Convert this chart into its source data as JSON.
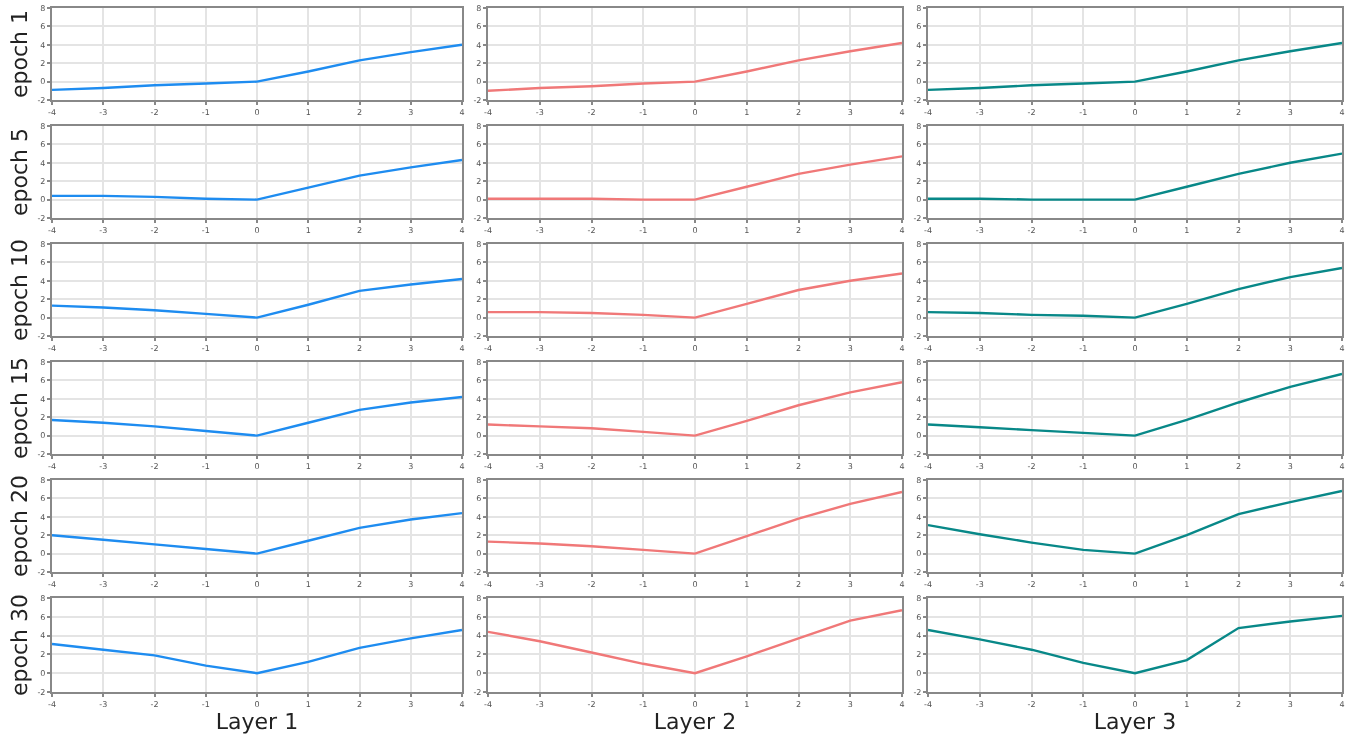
{
  "chart_data": [
    {
      "type": "line",
      "ylabel": "epoch 1",
      "x": [
        -4,
        -3,
        -2,
        -1,
        0,
        1,
        2,
        3,
        4
      ],
      "series": [
        {
          "color": "#1e8cf0",
          "values": [
            -0.9,
            -0.7,
            -0.4,
            -0.2,
            0,
            1.1,
            2.3,
            3.2,
            4.0
          ]
        }
      ],
      "xlim": [
        -4,
        4
      ],
      "ylim": [
        -2,
        8
      ],
      "xticks": [
        -4,
        -3,
        -2,
        -1,
        0,
        1,
        2,
        3,
        4
      ],
      "yticks": [
        -2,
        0,
        2,
        4,
        6,
        8
      ],
      "grid": true
    },
    {
      "type": "line",
      "x": [
        -4,
        -3,
        -2,
        -1,
        0,
        1,
        2,
        3,
        4
      ],
      "series": [
        {
          "color": "#f07878",
          "values": [
            -1.0,
            -0.7,
            -0.5,
            -0.2,
            0,
            1.1,
            2.3,
            3.3,
            4.2
          ]
        }
      ],
      "xlim": [
        -4,
        4
      ],
      "ylim": [
        -2,
        8
      ],
      "xticks": [
        -4,
        -3,
        -2,
        -1,
        0,
        1,
        2,
        3,
        4
      ],
      "yticks": [
        -2,
        0,
        2,
        4,
        6,
        8
      ],
      "grid": true
    },
    {
      "type": "line",
      "x": [
        -4,
        -3,
        -2,
        -1,
        0,
        1,
        2,
        3,
        4
      ],
      "series": [
        {
          "color": "#088888",
          "values": [
            -0.9,
            -0.7,
            -0.4,
            -0.2,
            0,
            1.1,
            2.3,
            3.3,
            4.2
          ]
        }
      ],
      "xlim": [
        -4,
        4
      ],
      "ylim": [
        -2,
        8
      ],
      "xticks": [
        -4,
        -3,
        -2,
        -1,
        0,
        1,
        2,
        3,
        4
      ],
      "yticks": [
        -2,
        0,
        2,
        4,
        6,
        8
      ],
      "grid": true
    },
    {
      "type": "line",
      "ylabel": "epoch 5",
      "x": [
        -4,
        -3,
        -2,
        -1,
        0,
        1,
        2,
        3,
        4
      ],
      "series": [
        {
          "color": "#1e8cf0",
          "values": [
            0.4,
            0.4,
            0.3,
            0.1,
            0,
            1.3,
            2.6,
            3.5,
            4.3
          ]
        }
      ],
      "xlim": [
        -4,
        4
      ],
      "ylim": [
        -2,
        8
      ],
      "xticks": [
        -4,
        -3,
        -2,
        -1,
        0,
        1,
        2,
        3,
        4
      ],
      "yticks": [
        -2,
        0,
        2,
        4,
        6,
        8
      ],
      "grid": true
    },
    {
      "type": "line",
      "x": [
        -4,
        -3,
        -2,
        -1,
        0,
        1,
        2,
        3,
        4
      ],
      "series": [
        {
          "color": "#f07878",
          "values": [
            0.1,
            0.1,
            0.1,
            0,
            0,
            1.4,
            2.8,
            3.8,
            4.7
          ]
        }
      ],
      "xlim": [
        -4,
        4
      ],
      "ylim": [
        -2,
        8
      ],
      "xticks": [
        -4,
        -3,
        -2,
        -1,
        0,
        1,
        2,
        3,
        4
      ],
      "yticks": [
        -2,
        0,
        2,
        4,
        6,
        8
      ],
      "grid": true
    },
    {
      "type": "line",
      "x": [
        -4,
        -3,
        -2,
        -1,
        0,
        1,
        2,
        3,
        4
      ],
      "series": [
        {
          "color": "#088888",
          "values": [
            0.1,
            0.1,
            0,
            0,
            0,
            1.4,
            2.8,
            4.0,
            5.0
          ]
        }
      ],
      "xlim": [
        -4,
        4
      ],
      "ylim": [
        -2,
        8
      ],
      "xticks": [
        -4,
        -3,
        -2,
        -1,
        0,
        1,
        2,
        3,
        4
      ],
      "yticks": [
        -2,
        0,
        2,
        4,
        6,
        8
      ],
      "grid": true
    },
    {
      "type": "line",
      "ylabel": "epoch 10",
      "x": [
        -4,
        -3,
        -2,
        -1,
        0,
        1,
        2,
        3,
        4
      ],
      "series": [
        {
          "color": "#1e8cf0",
          "values": [
            1.3,
            1.1,
            0.8,
            0.4,
            0,
            1.4,
            2.9,
            3.6,
            4.2
          ]
        }
      ],
      "xlim": [
        -4,
        4
      ],
      "ylim": [
        -2,
        8
      ],
      "xticks": [
        -4,
        -3,
        -2,
        -1,
        0,
        1,
        2,
        3,
        4
      ],
      "yticks": [
        -2,
        0,
        2,
        4,
        6,
        8
      ],
      "grid": true
    },
    {
      "type": "line",
      "x": [
        -4,
        -3,
        -2,
        -1,
        0,
        1,
        2,
        3,
        4
      ],
      "series": [
        {
          "color": "#f07878",
          "values": [
            0.6,
            0.6,
            0.5,
            0.3,
            0,
            1.5,
            3.0,
            4.0,
            4.8
          ]
        }
      ],
      "xlim": [
        -4,
        4
      ],
      "ylim": [
        -2,
        8
      ],
      "xticks": [
        -4,
        -3,
        -2,
        -1,
        0,
        1,
        2,
        3,
        4
      ],
      "yticks": [
        -2,
        0,
        2,
        4,
        6,
        8
      ],
      "grid": true
    },
    {
      "type": "line",
      "x": [
        -4,
        -3,
        -2,
        -1,
        0,
        1,
        2,
        3,
        4
      ],
      "series": [
        {
          "color": "#088888",
          "values": [
            0.6,
            0.5,
            0.3,
            0.2,
            0,
            1.5,
            3.1,
            4.4,
            5.4
          ]
        }
      ],
      "xlim": [
        -4,
        4
      ],
      "ylim": [
        -2,
        8
      ],
      "xticks": [
        -4,
        -3,
        -2,
        -1,
        0,
        1,
        2,
        3,
        4
      ],
      "yticks": [
        -2,
        0,
        2,
        4,
        6,
        8
      ],
      "grid": true
    },
    {
      "type": "line",
      "ylabel": "epoch 15",
      "x": [
        -4,
        -3,
        -2,
        -1,
        0,
        1,
        2,
        3,
        4
      ],
      "series": [
        {
          "color": "#1e8cf0",
          "values": [
            1.7,
            1.4,
            1.0,
            0.5,
            0,
            1.4,
            2.8,
            3.6,
            4.2
          ]
        }
      ],
      "xlim": [
        -4,
        4
      ],
      "ylim": [
        -2,
        8
      ],
      "xticks": [
        -4,
        -3,
        -2,
        -1,
        0,
        1,
        2,
        3,
        4
      ],
      "yticks": [
        -2,
        0,
        2,
        4,
        6,
        8
      ],
      "grid": true
    },
    {
      "type": "line",
      "x": [
        -4,
        -3,
        -2,
        -1,
        0,
        1,
        2,
        3,
        4
      ],
      "series": [
        {
          "color": "#f07878",
          "values": [
            1.2,
            1.0,
            0.8,
            0.4,
            0,
            1.6,
            3.3,
            4.7,
            5.8
          ]
        }
      ],
      "xlim": [
        -4,
        4
      ],
      "ylim": [
        -2,
        8
      ],
      "xticks": [
        -4,
        -3,
        -2,
        -1,
        0,
        1,
        2,
        3,
        4
      ],
      "yticks": [
        -2,
        0,
        2,
        4,
        6,
        8
      ],
      "grid": true
    },
    {
      "type": "line",
      "x": [
        -4,
        -3,
        -2,
        -1,
        0,
        1,
        2,
        3,
        4
      ],
      "series": [
        {
          "color": "#088888",
          "values": [
            1.2,
            0.9,
            0.6,
            0.3,
            0,
            1.7,
            3.6,
            5.3,
            6.7
          ]
        }
      ],
      "xlim": [
        -4,
        4
      ],
      "ylim": [
        -2,
        8
      ],
      "xticks": [
        -4,
        -3,
        -2,
        -1,
        0,
        1,
        2,
        3,
        4
      ],
      "yticks": [
        -2,
        0,
        2,
        4,
        6,
        8
      ],
      "grid": true
    },
    {
      "type": "line",
      "ylabel": "epoch 20",
      "x": [
        -4,
        -3,
        -2,
        -1,
        0,
        1,
        2,
        3,
        4
      ],
      "series": [
        {
          "color": "#1e8cf0",
          "values": [
            2.0,
            1.5,
            1.0,
            0.5,
            0,
            1.4,
            2.8,
            3.7,
            4.4
          ]
        }
      ],
      "xlim": [
        -4,
        4
      ],
      "ylim": [
        -2,
        8
      ],
      "xticks": [
        -4,
        -3,
        -2,
        -1,
        0,
        1,
        2,
        3,
        4
      ],
      "yticks": [
        -2,
        0,
        2,
        4,
        6,
        8
      ],
      "grid": true
    },
    {
      "type": "line",
      "x": [
        -4,
        -3,
        -2,
        -1,
        0,
        1,
        2,
        3,
        4
      ],
      "series": [
        {
          "color": "#f07878",
          "values": [
            1.3,
            1.1,
            0.8,
            0.4,
            0,
            1.9,
            3.8,
            5.4,
            6.7
          ]
        }
      ],
      "xlim": [
        -4,
        4
      ],
      "ylim": [
        -2,
        8
      ],
      "xticks": [
        -4,
        -3,
        -2,
        -1,
        0,
        1,
        2,
        3,
        4
      ],
      "yticks": [
        -2,
        0,
        2,
        4,
        6,
        8
      ],
      "grid": true
    },
    {
      "type": "line",
      "x": [
        -4,
        -3,
        -2,
        -1,
        0,
        1,
        2,
        3,
        4
      ],
      "series": [
        {
          "color": "#088888",
          "values": [
            3.1,
            2.1,
            1.2,
            0.4,
            0,
            2.0,
            4.3,
            5.6,
            6.8
          ]
        }
      ],
      "xlim": [
        -4,
        4
      ],
      "ylim": [
        -2,
        8
      ],
      "xticks": [
        -4,
        -3,
        -2,
        -1,
        0,
        1,
        2,
        3,
        4
      ],
      "yticks": [
        -2,
        0,
        2,
        4,
        6,
        8
      ],
      "grid": true
    },
    {
      "type": "line",
      "ylabel": "epoch 30",
      "xlabel": "Layer 1",
      "x": [
        -4,
        -3,
        -2,
        -1,
        0,
        1,
        2,
        3,
        4
      ],
      "series": [
        {
          "color": "#1e8cf0",
          "values": [
            3.1,
            2.5,
            1.9,
            0.8,
            0,
            1.2,
            2.7,
            3.7,
            4.6
          ]
        }
      ],
      "xlim": [
        -4,
        4
      ],
      "ylim": [
        -2,
        8
      ],
      "xticks": [
        -4,
        -3,
        -2,
        -1,
        0,
        1,
        2,
        3,
        4
      ],
      "yticks": [
        -2,
        0,
        2,
        4,
        6,
        8
      ],
      "grid": true
    },
    {
      "type": "line",
      "xlabel": "Layer 2",
      "x": [
        -4,
        -3,
        -2,
        -1,
        0,
        1,
        2,
        3,
        4
      ],
      "series": [
        {
          "color": "#f07878",
          "values": [
            4.4,
            3.4,
            2.2,
            1.0,
            0,
            1.8,
            3.7,
            5.6,
            6.7
          ]
        }
      ],
      "xlim": [
        -4,
        4
      ],
      "ylim": [
        -2,
        8
      ],
      "xticks": [
        -4,
        -3,
        -2,
        -1,
        0,
        1,
        2,
        3,
        4
      ],
      "yticks": [
        -2,
        0,
        2,
        4,
        6,
        8
      ],
      "grid": true
    },
    {
      "type": "line",
      "xlabel": "Layer 3",
      "x": [
        -4,
        -3,
        -2,
        -1,
        0,
        1,
        2,
        3,
        4
      ],
      "series": [
        {
          "color": "#088888",
          "values": [
            4.6,
            3.6,
            2.5,
            1.1,
            0,
            1.4,
            4.8,
            5.5,
            6.1
          ]
        }
      ],
      "xlim": [
        -4,
        4
      ],
      "ylim": [
        -2,
        8
      ],
      "xticks": [
        -4,
        -3,
        -2,
        -1,
        0,
        1,
        2,
        3,
        4
      ],
      "yticks": [
        -2,
        0,
        2,
        4,
        6,
        8
      ],
      "grid": true
    }
  ]
}
